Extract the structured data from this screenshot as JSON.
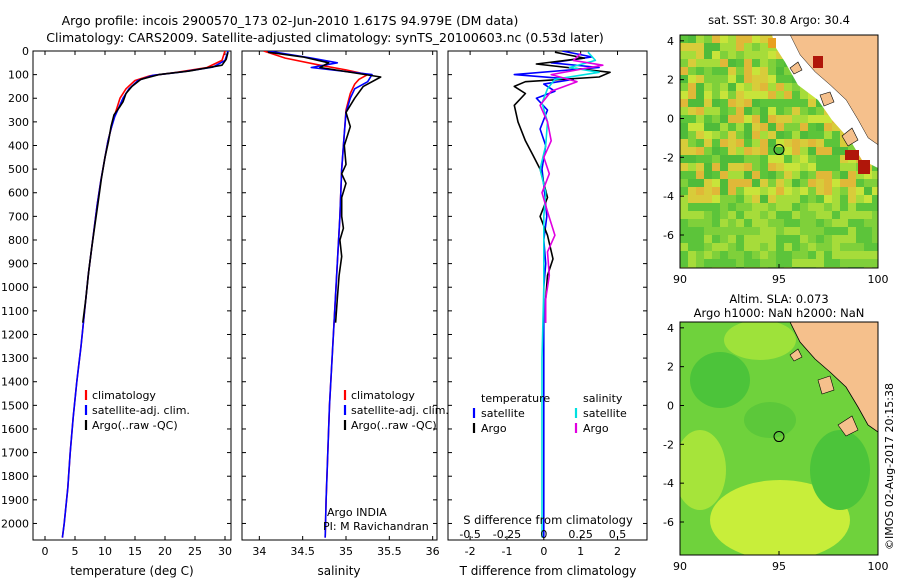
{
  "title_line1": "Argo profile: incois 2900570_173 02-Jun-2010 1.617S 94.979E (DM data)",
  "title_line2": "Climatology: CARS2009. Satellite-adjusted climatology: synTS_20100603.nc (0.53d later)",
  "colors": {
    "climatology": "#ff0000",
    "satellite": "#0000ff",
    "argo": "#000000",
    "sal_satellite": "#00e0e0",
    "sal_argo": "#e000e0",
    "land": "#f5c08c",
    "ocean_green": "#44c23a"
  },
  "chart_data": [
    {
      "type": "line",
      "id": "temperature",
      "xlabel": "temperature (deg C)",
      "ylabel": "",
      "xlim": [
        -2,
        31
      ],
      "ylim": [
        2070,
        0
      ],
      "xticks": [
        0,
        5,
        10,
        15,
        20,
        25,
        30
      ],
      "yticks": [
        0,
        100,
        200,
        300,
        400,
        500,
        600,
        700,
        800,
        900,
        1000,
        1100,
        1200,
        1300,
        1400,
        1500,
        1600,
        1700,
        1800,
        1900,
        2000
      ],
      "legend": [
        "climatology",
        "satellite-adj. clim.",
        "Argo(..raw -QC)"
      ],
      "series": [
        {
          "name": "climatology",
          "color": "#ff0000",
          "points": [
            [
              30,
              0
            ],
            [
              29.5,
              40
            ],
            [
              27,
              70
            ],
            [
              22,
              90
            ],
            [
              17.5,
              105
            ],
            [
              15,
              125
            ],
            [
              13.5,
              160
            ],
            [
              12.5,
              200
            ],
            [
              12,
              240
            ],
            [
              11.5,
              280
            ],
            [
              11,
              330
            ],
            [
              10.5,
              380
            ],
            [
              10,
              450
            ],
            [
              9.3,
              550
            ],
            [
              8.7,
              650
            ],
            [
              8.2,
              750
            ],
            [
              7.7,
              850
            ],
            [
              7.2,
              950
            ],
            [
              6.6,
              1100
            ],
            [
              6,
              1250
            ],
            [
              5.3,
              1400
            ],
            [
              4.7,
              1550
            ],
            [
              4.2,
              1700
            ],
            [
              3.8,
              1850
            ],
            [
              3.2,
              2000
            ],
            [
              2.9,
              2060
            ]
          ]
        },
        {
          "name": "satellite",
          "color": "#0000ff",
          "points": [
            [
              30.5,
              0
            ],
            [
              30,
              40
            ],
            [
              28,
              68
            ],
            [
              23,
              88
            ],
            [
              18,
              103
            ],
            [
              15.5,
              125
            ],
            [
              14,
              160
            ],
            [
              13,
              200
            ],
            [
              12.3,
              240
            ],
            [
              11.6,
              280
            ],
            [
              11,
              330
            ],
            [
              10.5,
              380
            ],
            [
              10,
              450
            ],
            [
              9.3,
              550
            ],
            [
              8.7,
              650
            ],
            [
              8.2,
              750
            ],
            [
              7.7,
              850
            ],
            [
              7.2,
              950
            ],
            [
              6.6,
              1100
            ],
            [
              6,
              1250
            ],
            [
              5.3,
              1400
            ],
            [
              4.7,
              1550
            ],
            [
              4.2,
              1700
            ],
            [
              3.8,
              1850
            ],
            [
              3.2,
              2000
            ],
            [
              2.9,
              2060
            ]
          ]
        },
        {
          "name": "Argo",
          "color": "#000000",
          "points": [
            [
              30.5,
              5
            ],
            [
              30.2,
              35
            ],
            [
              29.5,
              60
            ],
            [
              24,
              85
            ],
            [
              19,
              100
            ],
            [
              16,
              120
            ],
            [
              14.5,
              150
            ],
            [
              13.5,
              180
            ],
            [
              13,
              215
            ],
            [
              12.5,
              235
            ],
            [
              11.5,
              270
            ],
            [
              11,
              320
            ],
            [
              10.6,
              380
            ],
            [
              10,
              450
            ],
            [
              9.4,
              540
            ],
            [
              8.8,
              650
            ],
            [
              8.3,
              740
            ],
            [
              7.8,
              830
            ],
            [
              7.3,
              930
            ],
            [
              6.8,
              1050
            ],
            [
              6.3,
              1150
            ]
          ]
        }
      ]
    },
    {
      "type": "line",
      "id": "salinity",
      "xlabel": "salinity",
      "xlim": [
        33.8,
        36.05
      ],
      "ylim": [
        2070,
        0
      ],
      "xticks": [
        34,
        34.5,
        35,
        35.5,
        36
      ],
      "legend": [
        "climatology",
        "satellite-adj. clim.",
        "Argo(..raw -QC)"
      ],
      "annotation_line1": "Argo INDIA",
      "annotation_line2": "PI: M Ravichandran",
      "series": [
        {
          "name": "climatology",
          "color": "#ff0000",
          "points": [
            [
              34.05,
              0
            ],
            [
              34.3,
              30
            ],
            [
              34.7,
              60
            ],
            [
              35.0,
              80
            ],
            [
              35.25,
              100
            ],
            [
              35.15,
              120
            ],
            [
              35.1,
              140
            ],
            [
              35.05,
              180
            ],
            [
              35.0,
              250
            ],
            [
              34.98,
              350
            ],
            [
              34.95,
              500
            ],
            [
              34.93,
              700
            ],
            [
              34.9,
              900
            ],
            [
              34.87,
              1100
            ],
            [
              34.84,
              1300
            ],
            [
              34.81,
              1500
            ],
            [
              34.79,
              1700
            ],
            [
              34.77,
              1900
            ],
            [
              34.76,
              2060
            ]
          ]
        },
        {
          "name": "satellite",
          "color": "#0000ff",
          "points": [
            [
              34.1,
              0
            ],
            [
              34.6,
              30
            ],
            [
              34.9,
              50
            ],
            [
              34.6,
              70
            ],
            [
              35.3,
              100
            ],
            [
              35.25,
              130
            ],
            [
              35.1,
              160
            ],
            [
              35.05,
              200
            ],
            [
              35.0,
              260
            ],
            [
              34.98,
              350
            ],
            [
              34.95,
              500
            ],
            [
              34.93,
              700
            ],
            [
              34.9,
              900
            ],
            [
              34.87,
              1100
            ],
            [
              34.84,
              1300
            ],
            [
              34.81,
              1500
            ],
            [
              34.79,
              1700
            ],
            [
              34.77,
              1900
            ],
            [
              34.76,
              2060
            ]
          ]
        },
        {
          "name": "Argo",
          "color": "#000000",
          "points": [
            [
              34.1,
              5
            ],
            [
              34.5,
              25
            ],
            [
              34.8,
              50
            ],
            [
              34.7,
              70
            ],
            [
              35.4,
              110
            ],
            [
              35.2,
              150
            ],
            [
              35.1,
              200
            ],
            [
              35.0,
              260
            ],
            [
              35.05,
              320
            ],
            [
              34.98,
              400
            ],
            [
              35.0,
              480
            ],
            [
              34.95,
              520
            ],
            [
              35.0,
              560
            ],
            [
              34.95,
              620
            ],
            [
              34.95,
              700
            ],
            [
              34.97,
              750
            ],
            [
              34.93,
              800
            ],
            [
              34.95,
              870
            ],
            [
              34.92,
              950
            ],
            [
              34.9,
              1050
            ],
            [
              34.88,
              1150
            ]
          ]
        }
      ]
    },
    {
      "type": "line",
      "id": "differences",
      "xlabel": "T difference from climatology",
      "top_xlabel": "S difference from climatology",
      "xlim": [
        -2.6,
        2.8
      ],
      "ylim": [
        2070,
        0
      ],
      "xticks": [
        -2,
        -1,
        0,
        1,
        2
      ],
      "top_xticks": [
        "-0.5",
        "-0.25",
        "0",
        "0.25",
        "0.5"
      ],
      "legend_headers": [
        "temperature",
        "salinity"
      ],
      "legend": [
        "satellite",
        "Argo",
        "satellite",
        "Argo"
      ],
      "series": [
        {
          "name": "T satellite",
          "color": "#0000ff",
          "points": [
            [
              0.5,
              0
            ],
            [
              1.3,
              25
            ],
            [
              0.2,
              50
            ],
            [
              1.5,
              70
            ],
            [
              -0.8,
              100
            ],
            [
              0.8,
              120
            ],
            [
              0.0,
              140
            ],
            [
              0.3,
              170
            ],
            [
              -0.2,
              200
            ],
            [
              0.1,
              250
            ],
            [
              -0.1,
              330
            ],
            [
              0.05,
              400
            ],
            [
              -0.05,
              500
            ],
            [
              0.02,
              600
            ],
            [
              0.08,
              700
            ],
            [
              0.0,
              800
            ],
            [
              0.05,
              900
            ],
            [
              0.0,
              1000
            ],
            [
              0.0,
              1200
            ],
            [
              0.0,
              1500
            ],
            [
              0.0,
              1800
            ],
            [
              0.0,
              2060
            ]
          ]
        },
        {
          "name": "T Argo",
          "color": "#000000",
          "points": [
            [
              0.3,
              5
            ],
            [
              1.1,
              30
            ],
            [
              -0.2,
              55
            ],
            [
              1.8,
              90
            ],
            [
              1.5,
              110
            ],
            [
              -0.5,
              130
            ],
            [
              -0.8,
              150
            ],
            [
              -0.5,
              180
            ],
            [
              -0.8,
              230
            ],
            [
              -0.7,
              300
            ],
            [
              -0.5,
              380
            ],
            [
              -0.3,
              440
            ],
            [
              -0.1,
              500
            ],
            [
              0.0,
              560
            ],
            [
              0.1,
              620
            ],
            [
              -0.1,
              700
            ],
            [
              0.1,
              780
            ],
            [
              0.25,
              880
            ],
            [
              0.1,
              950
            ],
            [
              0.05,
              1050
            ],
            [
              0.05,
              1150
            ]
          ]
        },
        {
          "name": "S satellite",
          "color": "#00e0e0",
          "points": [
            [
              1.2,
              5
            ],
            [
              1.4,
              40
            ],
            [
              0.7,
              70
            ],
            [
              1.5,
              90
            ],
            [
              0.3,
              120
            ],
            [
              0.1,
              160
            ],
            [
              -0.05,
              220
            ],
            [
              0.1,
              300
            ],
            [
              0.05,
              400
            ],
            [
              -0.1,
              500
            ],
            [
              0.05,
              600
            ],
            [
              0.0,
              700
            ],
            [
              0.0,
              800
            ],
            [
              0.0,
              1000
            ],
            [
              -0.05,
              1300
            ],
            [
              -0.05,
              1600
            ],
            [
              -0.05,
              2060
            ]
          ]
        },
        {
          "name": "S Argo",
          "color": "#e000e0",
          "points": [
            [
              1.0,
              10
            ],
            [
              0.8,
              40
            ],
            [
              1.6,
              60
            ],
            [
              0.2,
              100
            ],
            [
              0.9,
              130
            ],
            [
              0.2,
              170
            ],
            [
              -0.1,
              230
            ],
            [
              0.1,
              300
            ],
            [
              0.2,
              380
            ],
            [
              0.0,
              450
            ],
            [
              0.15,
              520
            ],
            [
              -0.05,
              600
            ],
            [
              0.1,
              680
            ],
            [
              0.3,
              780
            ],
            [
              0.1,
              850
            ],
            [
              0.15,
              950
            ],
            [
              0.05,
              1050
            ],
            [
              0.05,
              1150
            ]
          ]
        }
      ]
    },
    {
      "type": "heatmap",
      "id": "sst_map",
      "title": "sat. SST: 30.8  Argo: 30.4",
      "xlim": [
        90,
        100
      ],
      "ylim": [
        -7.7,
        4.3
      ],
      "xticks": [
        90,
        95,
        100
      ],
      "yticks": [
        4,
        2,
        0,
        -2,
        -4,
        -6
      ],
      "argo_position": [
        95.0,
        -1.6
      ]
    },
    {
      "type": "heatmap",
      "id": "sla_map",
      "title_line1": "Altim. SLA: 0.073",
      "title_line2": "Argo h1000: NaN h2000: NaN",
      "xlim": [
        90,
        100
      ],
      "ylim": [
        -7.7,
        4.3
      ],
      "xticks": [
        90,
        95,
        100
      ],
      "yticks": [
        4,
        2,
        0,
        -2,
        -4,
        -6
      ],
      "argo_position": [
        95.0,
        -1.6
      ]
    }
  ],
  "watermark": "©IMOS 02-Aug-2017 20:15:38"
}
